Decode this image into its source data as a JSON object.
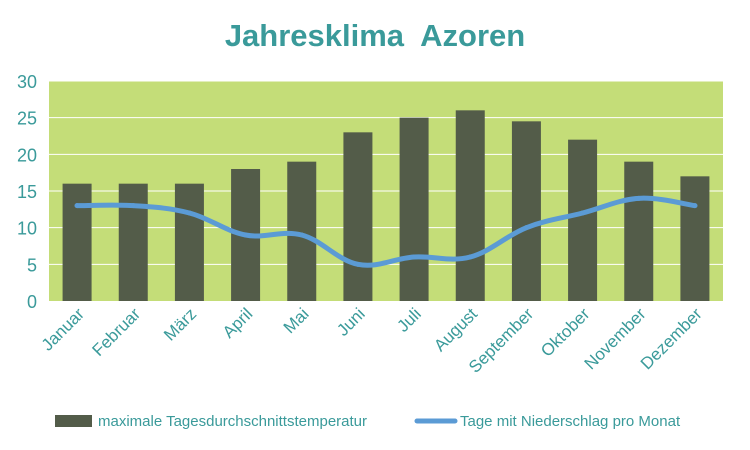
{
  "chart_data": {
    "type": "bar",
    "title": "Jahresklima  Azoren",
    "categories": [
      "Januar",
      "Februar",
      "März",
      "April",
      "Mai",
      "Juni",
      "Juli",
      "August",
      "September",
      "Oktober",
      "November",
      "Dezember"
    ],
    "series": [
      {
        "name": "maximale Tagesdurchschnittstemperatur",
        "type": "bar",
        "values": [
          16,
          16,
          16,
          18,
          19,
          23,
          25,
          26,
          24.5,
          22,
          19,
          17
        ]
      },
      {
        "name": "Tage mit Niederschlag pro Monat",
        "type": "line",
        "values": [
          13,
          13,
          12,
          9,
          9,
          5,
          6,
          6,
          10,
          12,
          14,
          13
        ]
      }
    ],
    "ylim": [
      0,
      30
    ],
    "yticks": [
      0,
      5,
      10,
      15,
      20,
      25,
      30
    ],
    "grid": true,
    "legend_position": "bottom",
    "colors": {
      "title": "#3a9a9a",
      "plot_background": "#c4dd78",
      "bars": "#535c49",
      "line": "#5b9bd5",
      "ticks": "#3a9a9a",
      "legend_text": "#3a9a9a",
      "grid": "#ffffff"
    }
  }
}
